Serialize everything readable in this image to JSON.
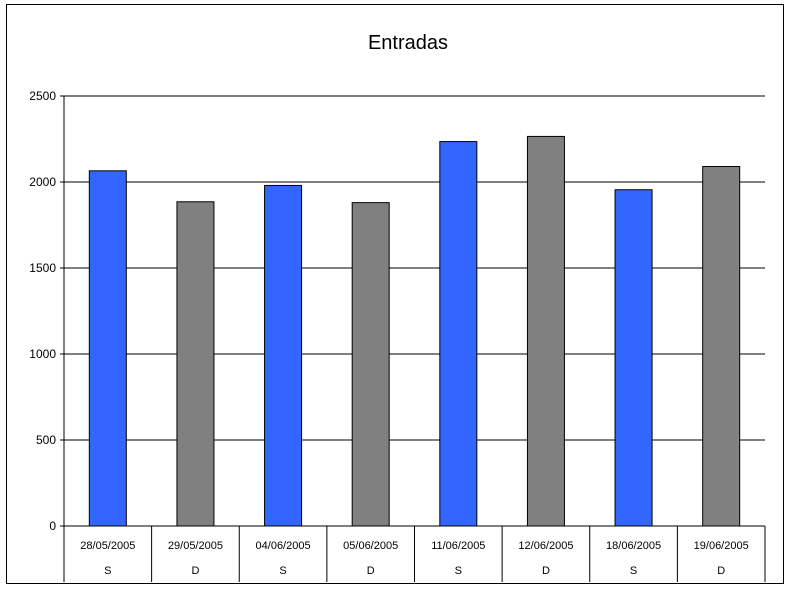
{
  "chart_data": {
    "type": "bar",
    "title": "Entradas",
    "categories": [
      "28/05/2005",
      "29/05/2005",
      "04/06/2005",
      "05/06/2005",
      "11/06/2005",
      "12/06/2005",
      "18/06/2005",
      "19/06/2005"
    ],
    "subcategories": [
      "S",
      "D",
      "S",
      "D",
      "S",
      "D",
      "S",
      "D"
    ],
    "values": [
      2065,
      1885,
      1980,
      1880,
      2235,
      2265,
      1955,
      2090
    ],
    "ylim": [
      0,
      2500
    ],
    "yticks": [
      "0",
      "500",
      "1000",
      "1500",
      "2000",
      "2500"
    ],
    "grid": true,
    "legend": "none",
    "colors": {
      "S": "#3366ff",
      "D": "#808080",
      "grid": "#000000"
    }
  }
}
